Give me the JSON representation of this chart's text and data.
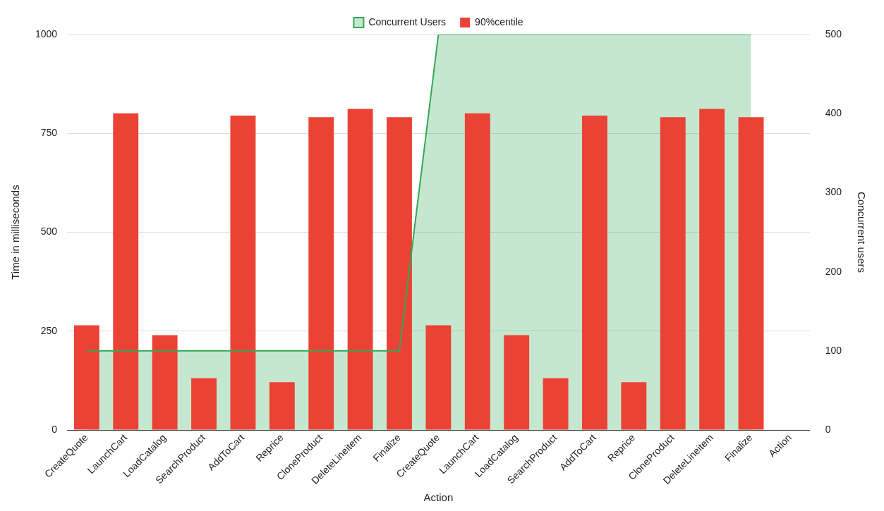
{
  "chart_data": {
    "type": "bar",
    "categories": [
      "CreateQuote",
      "LaunchCart",
      "LoadCatalog",
      "SearchProduct",
      "AddToCart",
      "Reprice",
      "CloneProduct",
      "DeleteLineitem",
      "Finalize",
      "CreateQuote",
      "LaunchCart",
      "LoadCatalog",
      "SearchProduct",
      "AddToCart",
      "Reprice",
      "CloneProduct",
      "DeleteLineitem",
      "Finalize",
      "Action"
    ],
    "series": [
      {
        "name": "90%centile",
        "color": "#ea4335",
        "values": [
          265,
          801,
          240,
          131,
          795,
          121,
          791,
          812,
          791,
          265,
          801,
          240,
          131,
          795,
          121,
          791,
          812,
          791,
          null
        ]
      },
      {
        "name": "Concurrent Users",
        "type": "area",
        "axis": "y2",
        "color": "#34a853",
        "values": [
          100,
          100,
          100,
          100,
          100,
          100,
          100,
          100,
          100,
          500,
          500,
          500,
          500,
          500,
          500,
          500,
          500,
          500,
          null
        ]
      }
    ],
    "xlabel": "Action",
    "ylabel": "Time in milliseconds",
    "y2label": "Concurrent users",
    "ylim": [
      0,
      1000
    ],
    "yticks": [
      0,
      250,
      500,
      750,
      1000
    ],
    "y2lim": [
      0,
      500
    ],
    "y2ticks": [
      0,
      100,
      200,
      300,
      400,
      500
    ],
    "legend": "top",
    "grid": "y",
    "marker": "none"
  }
}
